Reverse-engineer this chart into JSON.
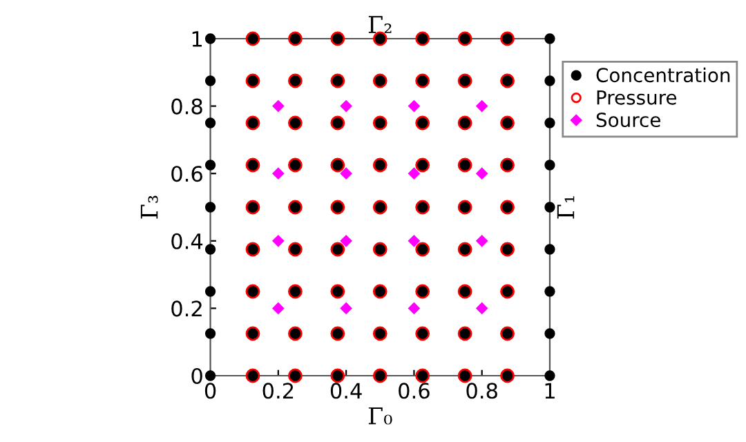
{
  "chart_data": {
    "type": "scatter",
    "title": "Γ₂",
    "xlabel": "Γ₀",
    "ylabel": "Γ₃",
    "y2label": "Γ₁",
    "xlim": [
      0,
      1
    ],
    "ylim": [
      0,
      1
    ],
    "xticks": [
      0,
      0.2,
      0.4,
      0.6,
      0.8,
      1
    ],
    "yticks": [
      0,
      0.2,
      0.4,
      0.6,
      0.8,
      1
    ],
    "grid": false,
    "legend": "top right",
    "series": [
      {
        "name": "Concentration",
        "color": "#000000",
        "marker": "circle",
        "x": [
          0,
          0.125,
          0.25,
          0.375,
          0.5,
          0.625,
          0.75,
          0.875,
          1,
          0,
          0.125,
          0.25,
          0.375,
          0.5,
          0.625,
          0.75,
          0.875,
          1,
          0,
          0.125,
          0.25,
          0.375,
          0.5,
          0.625,
          0.75,
          0.875,
          1,
          0,
          0.125,
          0.25,
          0.375,
          0.5,
          0.625,
          0.75,
          0.875,
          1,
          0,
          0.125,
          0.25,
          0.375,
          0.5,
          0.625,
          0.75,
          0.875,
          1,
          0,
          0.125,
          0.25,
          0.375,
          0.5,
          0.625,
          0.75,
          0.875,
          1,
          0,
          0.125,
          0.25,
          0.375,
          0.5,
          0.625,
          0.75,
          0.875,
          1,
          0,
          0.125,
          0.25,
          0.375,
          0.5,
          0.625,
          0.75,
          0.875,
          1,
          0,
          0.125,
          0.25,
          0.375,
          0.5,
          0.625,
          0.75,
          0.875,
          1
        ],
        "values": [
          0,
          0,
          0,
          0,
          0,
          0,
          0,
          0,
          0,
          0.125,
          0.125,
          0.125,
          0.125,
          0.125,
          0.125,
          0.125,
          0.125,
          0.125,
          0.25,
          0.25,
          0.25,
          0.25,
          0.25,
          0.25,
          0.25,
          0.25,
          0.25,
          0.375,
          0.375,
          0.375,
          0.375,
          0.375,
          0.375,
          0.375,
          0.375,
          0.375,
          0.5,
          0.5,
          0.5,
          0.5,
          0.5,
          0.5,
          0.5,
          0.5,
          0.5,
          0.625,
          0.625,
          0.625,
          0.625,
          0.625,
          0.625,
          0.625,
          0.625,
          0.625,
          0.75,
          0.75,
          0.75,
          0.75,
          0.75,
          0.75,
          0.75,
          0.75,
          0.75,
          0.875,
          0.875,
          0.875,
          0.875,
          0.875,
          0.875,
          0.875,
          0.875,
          0.875,
          1,
          1,
          1,
          1,
          1,
          1,
          1,
          1,
          1
        ]
      },
      {
        "name": "Pressure",
        "color": "#ff0000",
        "marker": "circle",
        "x": [
          0.125,
          0.25,
          0.375,
          0.5,
          0.625,
          0.75,
          0.875,
          0.125,
          0.25,
          0.375,
          0.5,
          0.625,
          0.75,
          0.875,
          0.125,
          0.25,
          0.375,
          0.5,
          0.625,
          0.75,
          0.875,
          0.125,
          0.25,
          0.375,
          0.5,
          0.625,
          0.75,
          0.875,
          0.125,
          0.25,
          0.375,
          0.5,
          0.625,
          0.75,
          0.875,
          0.125,
          0.25,
          0.375,
          0.5,
          0.625,
          0.75,
          0.875,
          0.125,
          0.25,
          0.375,
          0.5,
          0.625,
          0.75,
          0.875,
          0.125,
          0.25,
          0.375,
          0.5,
          0.625,
          0.75,
          0.875,
          0.125,
          0.25,
          0.375,
          0.5,
          0.625,
          0.75,
          0.875
        ],
        "values": [
          0,
          0,
          0,
          0,
          0,
          0,
          0,
          0.125,
          0.125,
          0.125,
          0.125,
          0.125,
          0.125,
          0.125,
          0.25,
          0.25,
          0.25,
          0.25,
          0.25,
          0.25,
          0.25,
          0.375,
          0.375,
          0.375,
          0.375,
          0.375,
          0.375,
          0.375,
          0.5,
          0.5,
          0.5,
          0.5,
          0.5,
          0.5,
          0.5,
          0.625,
          0.625,
          0.625,
          0.625,
          0.625,
          0.625,
          0.625,
          0.75,
          0.75,
          0.75,
          0.75,
          0.75,
          0.75,
          0.75,
          0.875,
          0.875,
          0.875,
          0.875,
          0.875,
          0.875,
          0.875,
          1,
          1,
          1,
          1,
          1,
          1,
          1
        ]
      },
      {
        "name": "Source",
        "color": "#ff00ff",
        "marker": "diamond",
        "x": [
          0.2,
          0.4,
          0.6,
          0.8,
          0.2,
          0.4,
          0.6,
          0.8,
          0.2,
          0.4,
          0.6,
          0.8,
          0.2,
          0.4,
          0.6,
          0.8
        ],
        "values": [
          0.2,
          0.2,
          0.2,
          0.2,
          0.4,
          0.4,
          0.4,
          0.4,
          0.6,
          0.6,
          0.6,
          0.6,
          0.8,
          0.8,
          0.8,
          0.8
        ]
      }
    ]
  }
}
